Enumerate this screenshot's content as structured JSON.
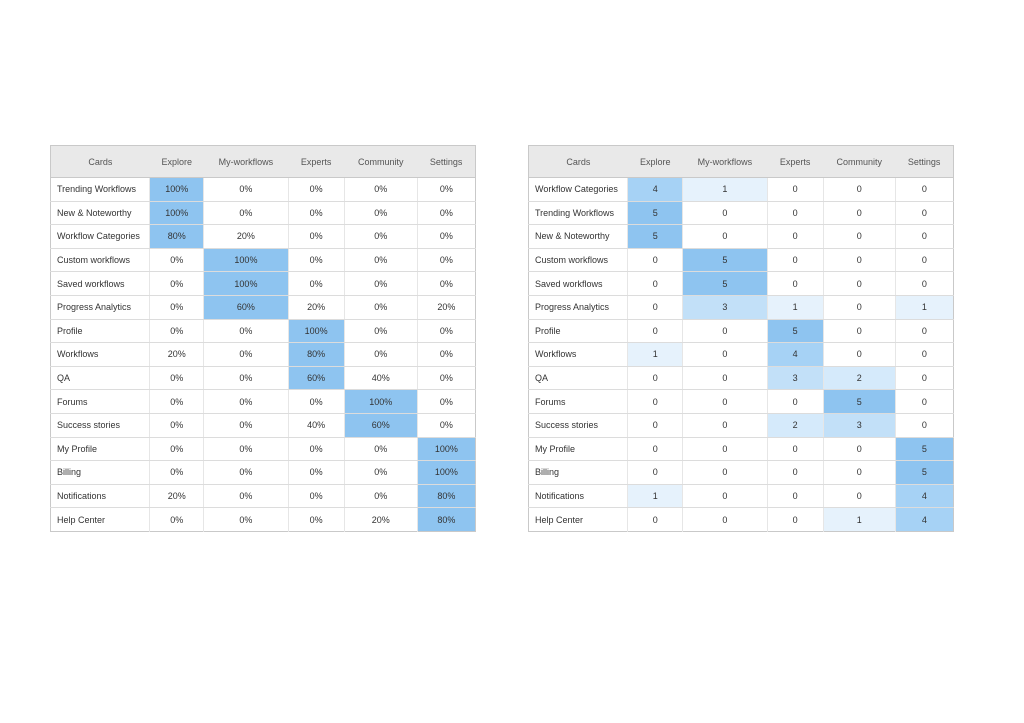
{
  "heat_colors": {
    "0": "#ffffff",
    "1": "#e6f2fc",
    "2": "#d5eafb",
    "3": "#c2e0f8",
    "4": "#a6d2f5",
    "5": "#8ec4f0"
  },
  "table_percent": {
    "headers": [
      "Cards",
      "Explore",
      "My-workflows",
      "Experts",
      "Community",
      "Settings"
    ],
    "rows": [
      {
        "label": "Trending Workflows",
        "cells": [
          "100%",
          "0%",
          "0%",
          "0%",
          "0%"
        ],
        "levels": [
          5,
          0,
          0,
          0,
          0
        ]
      },
      {
        "label": "New & Noteworthy",
        "cells": [
          "100%",
          "0%",
          "0%",
          "0%",
          "0%"
        ],
        "levels": [
          5,
          0,
          0,
          0,
          0
        ]
      },
      {
        "label": "Workflow Categories",
        "cells": [
          "80%",
          "20%",
          "0%",
          "0%",
          "0%"
        ],
        "levels": [
          5,
          0,
          0,
          0,
          0
        ]
      },
      {
        "label": "Custom workflows",
        "cells": [
          "0%",
          "100%",
          "0%",
          "0%",
          "0%"
        ],
        "levels": [
          0,
          5,
          0,
          0,
          0
        ]
      },
      {
        "label": "Saved workflows",
        "cells": [
          "0%",
          "100%",
          "0%",
          "0%",
          "0%"
        ],
        "levels": [
          0,
          5,
          0,
          0,
          0
        ]
      },
      {
        "label": "Progress Analytics",
        "cells": [
          "0%",
          "60%",
          "20%",
          "0%",
          "20%"
        ],
        "levels": [
          0,
          5,
          0,
          0,
          0
        ]
      },
      {
        "label": "Profile",
        "cells": [
          "0%",
          "0%",
          "100%",
          "0%",
          "0%"
        ],
        "levels": [
          0,
          0,
          5,
          0,
          0
        ]
      },
      {
        "label": "Workflows",
        "cells": [
          "20%",
          "0%",
          "80%",
          "0%",
          "0%"
        ],
        "levels": [
          0,
          0,
          5,
          0,
          0
        ]
      },
      {
        "label": "QA",
        "cells": [
          "0%",
          "0%",
          "60%",
          "40%",
          "0%"
        ],
        "levels": [
          0,
          0,
          5,
          0,
          0
        ]
      },
      {
        "label": "Forums",
        "cells": [
          "0%",
          "0%",
          "0%",
          "100%",
          "0%"
        ],
        "levels": [
          0,
          0,
          0,
          5,
          0
        ]
      },
      {
        "label": "Success stories",
        "cells": [
          "0%",
          "0%",
          "40%",
          "60%",
          "0%"
        ],
        "levels": [
          0,
          0,
          0,
          5,
          0
        ]
      },
      {
        "label": "My Profile",
        "cells": [
          "0%",
          "0%",
          "0%",
          "0%",
          "100%"
        ],
        "levels": [
          0,
          0,
          0,
          0,
          5
        ]
      },
      {
        "label": "Billing",
        "cells": [
          "0%",
          "0%",
          "0%",
          "0%",
          "100%"
        ],
        "levels": [
          0,
          0,
          0,
          0,
          5
        ]
      },
      {
        "label": "Notifications",
        "cells": [
          "20%",
          "0%",
          "0%",
          "0%",
          "80%"
        ],
        "levels": [
          0,
          0,
          0,
          0,
          5
        ]
      },
      {
        "label": "Help Center",
        "cells": [
          "0%",
          "0%",
          "0%",
          "20%",
          "80%"
        ],
        "levels": [
          0,
          0,
          0,
          0,
          5
        ]
      }
    ]
  },
  "table_count": {
    "headers": [
      "Cards",
      "Explore",
      "My-workflows",
      "Experts",
      "Community",
      "Settings"
    ],
    "rows": [
      {
        "label": "Workflow Categories",
        "cells": [
          "4",
          "1",
          "0",
          "0",
          "0"
        ],
        "levels": [
          4,
          1,
          0,
          0,
          0
        ]
      },
      {
        "label": "Trending Workflows",
        "cells": [
          "5",
          "0",
          "0",
          "0",
          "0"
        ],
        "levels": [
          5,
          0,
          0,
          0,
          0
        ]
      },
      {
        "label": "New & Noteworthy",
        "cells": [
          "5",
          "0",
          "0",
          "0",
          "0"
        ],
        "levels": [
          5,
          0,
          0,
          0,
          0
        ]
      },
      {
        "label": "Custom workflows",
        "cells": [
          "0",
          "5",
          "0",
          "0",
          "0"
        ],
        "levels": [
          0,
          5,
          0,
          0,
          0
        ]
      },
      {
        "label": "Saved workflows",
        "cells": [
          "0",
          "5",
          "0",
          "0",
          "0"
        ],
        "levels": [
          0,
          5,
          0,
          0,
          0
        ]
      },
      {
        "label": "Progress Analytics",
        "cells": [
          "0",
          "3",
          "1",
          "0",
          "1"
        ],
        "levels": [
          0,
          3,
          1,
          0,
          1
        ]
      },
      {
        "label": "Profile",
        "cells": [
          "0",
          "0",
          "5",
          "0",
          "0"
        ],
        "levels": [
          0,
          0,
          5,
          0,
          0
        ]
      },
      {
        "label": "Workflows",
        "cells": [
          "1",
          "0",
          "4",
          "0",
          "0"
        ],
        "levels": [
          1,
          0,
          4,
          0,
          0
        ]
      },
      {
        "label": "QA",
        "cells": [
          "0",
          "0",
          "3",
          "2",
          "0"
        ],
        "levels": [
          0,
          0,
          3,
          2,
          0
        ]
      },
      {
        "label": "Forums",
        "cells": [
          "0",
          "0",
          "0",
          "5",
          "0"
        ],
        "levels": [
          0,
          0,
          0,
          5,
          0
        ]
      },
      {
        "label": "Success stories",
        "cells": [
          "0",
          "0",
          "2",
          "3",
          "0"
        ],
        "levels": [
          0,
          0,
          2,
          3,
          0
        ]
      },
      {
        "label": "My Profile",
        "cells": [
          "0",
          "0",
          "0",
          "0",
          "5"
        ],
        "levels": [
          0,
          0,
          0,
          0,
          5
        ]
      },
      {
        "label": "Billing",
        "cells": [
          "0",
          "0",
          "0",
          "0",
          "5"
        ],
        "levels": [
          0,
          0,
          0,
          0,
          5
        ]
      },
      {
        "label": "Notifications",
        "cells": [
          "1",
          "0",
          "0",
          "0",
          "4"
        ],
        "levels": [
          1,
          0,
          0,
          0,
          4
        ]
      },
      {
        "label": "Help Center",
        "cells": [
          "0",
          "0",
          "0",
          "1",
          "4"
        ],
        "levels": [
          0,
          0,
          0,
          1,
          4
        ]
      }
    ]
  }
}
